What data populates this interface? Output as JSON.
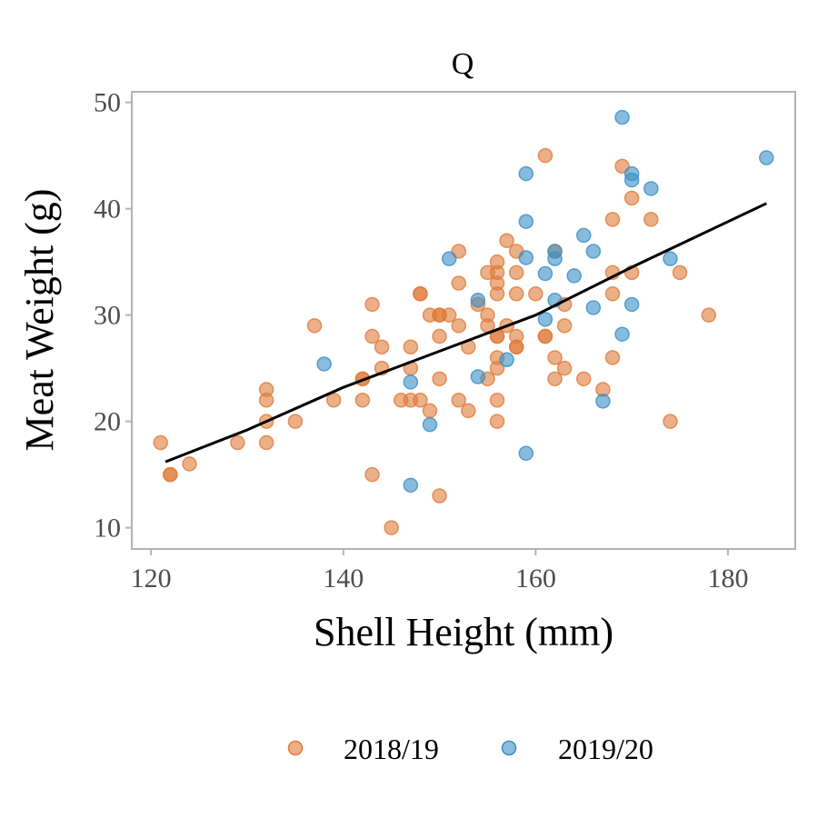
{
  "chart_data": {
    "type": "scatter",
    "title": "Q",
    "xlabel": "Shell Height (mm)",
    "ylabel": "Meat Weight (g)",
    "xlim": [
      118,
      187
    ],
    "ylim": [
      8,
      51
    ],
    "xticks": [
      120,
      140,
      160,
      180
    ],
    "yticks": [
      10,
      20,
      30,
      40,
      50
    ],
    "grid": false,
    "legend_position": "bottom",
    "series": [
      {
        "name": "2018/19",
        "color": "#E07B39",
        "points": [
          [
            121,
            18
          ],
          [
            122,
            15
          ],
          [
            122,
            15
          ],
          [
            124,
            16
          ],
          [
            129,
            18
          ],
          [
            132,
            23
          ],
          [
            132,
            22
          ],
          [
            132,
            20
          ],
          [
            132,
            18
          ],
          [
            135,
            20
          ],
          [
            137,
            29
          ],
          [
            139,
            22
          ],
          [
            142,
            24
          ],
          [
            142,
            24
          ],
          [
            142,
            22
          ],
          [
            143,
            31
          ],
          [
            143,
            28
          ],
          [
            143,
            15
          ],
          [
            144,
            27
          ],
          [
            144,
            25
          ],
          [
            145,
            10
          ],
          [
            146,
            22
          ],
          [
            147,
            27
          ],
          [
            147,
            25
          ],
          [
            147,
            22
          ],
          [
            148,
            32
          ],
          [
            148,
            32
          ],
          [
            148,
            22
          ],
          [
            149,
            30
          ],
          [
            149,
            21
          ],
          [
            150,
            30
          ],
          [
            150,
            30
          ],
          [
            150,
            28
          ],
          [
            150,
            24
          ],
          [
            150,
            13
          ],
          [
            151,
            30
          ],
          [
            152,
            36
          ],
          [
            152,
            33
          ],
          [
            152,
            29
          ],
          [
            152,
            22
          ],
          [
            153,
            27
          ],
          [
            153,
            21
          ],
          [
            154,
            31
          ],
          [
            155,
            34
          ],
          [
            155,
            30
          ],
          [
            155,
            29
          ],
          [
            155,
            24
          ],
          [
            156,
            35
          ],
          [
            156,
            34
          ],
          [
            156,
            33
          ],
          [
            156,
            32
          ],
          [
            156,
            28
          ],
          [
            156,
            28
          ],
          [
            156,
            26
          ],
          [
            156,
            25
          ],
          [
            156,
            22
          ],
          [
            156,
            20
          ],
          [
            157,
            37
          ],
          [
            157,
            29
          ],
          [
            158,
            36
          ],
          [
            158,
            34
          ],
          [
            158,
            32
          ],
          [
            158,
            28
          ],
          [
            158,
            27
          ],
          [
            158,
            27
          ],
          [
            160,
            32
          ],
          [
            161,
            45
          ],
          [
            161,
            28
          ],
          [
            161,
            28
          ],
          [
            162,
            36
          ],
          [
            162,
            26
          ],
          [
            162,
            24
          ],
          [
            163,
            31
          ],
          [
            163,
            29
          ],
          [
            163,
            25
          ],
          [
            165,
            24
          ],
          [
            167,
            23
          ],
          [
            168,
            39
          ],
          [
            168,
            34
          ],
          [
            168,
            32
          ],
          [
            168,
            26
          ],
          [
            169,
            44
          ],
          [
            170,
            41
          ],
          [
            170,
            34
          ],
          [
            172,
            39
          ],
          [
            174,
            20
          ],
          [
            175,
            34
          ],
          [
            178,
            30
          ]
        ]
      },
      {
        "name": "2019/20",
        "color": "#3A8FC4",
        "points": [
          [
            138,
            25.4
          ],
          [
            147,
            23.7
          ],
          [
            147,
            14
          ],
          [
            149,
            19.7
          ],
          [
            151,
            35.3
          ],
          [
            154,
            31.4
          ],
          [
            154,
            24.2
          ],
          [
            157,
            25.8
          ],
          [
            159,
            43.3
          ],
          [
            159,
            38.8
          ],
          [
            159,
            35.4
          ],
          [
            159,
            17
          ],
          [
            161,
            33.9
          ],
          [
            161,
            29.6
          ],
          [
            162,
            36
          ],
          [
            162,
            35.3
          ],
          [
            162,
            31.4
          ],
          [
            164,
            33.7
          ],
          [
            165,
            37.5
          ],
          [
            166,
            36
          ],
          [
            166,
            30.7
          ],
          [
            167,
            21.9
          ],
          [
            169,
            48.6
          ],
          [
            169,
            28.2
          ],
          [
            170,
            43.3
          ],
          [
            170,
            42.7
          ],
          [
            170,
            31
          ],
          [
            172,
            41.9
          ],
          [
            174,
            35.3
          ],
          [
            184,
            44.8
          ]
        ]
      }
    ],
    "trend_line": {
      "color": "#000000",
      "points": [
        [
          121.5,
          16.2
        ],
        [
          130,
          19.2
        ],
        [
          140,
          23.2
        ],
        [
          150,
          26.6
        ],
        [
          160,
          30.0
        ],
        [
          170,
          34.5
        ],
        [
          184,
          40.5
        ]
      ]
    }
  }
}
